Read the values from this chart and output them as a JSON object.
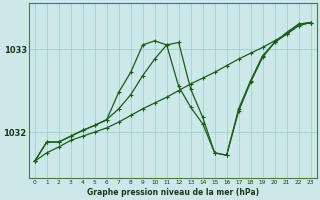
{
  "bg_color": "#cce8e8",
  "grid_color": "#99cccc",
  "line_color": "#1a5c1a",
  "title": "Graphe pression niveau de la mer (hPa)",
  "hours": [
    0,
    1,
    2,
    3,
    4,
    5,
    6,
    7,
    8,
    9,
    10,
    11,
    12,
    13,
    14,
    15,
    16,
    17,
    18,
    19,
    20,
    21,
    22,
    23
  ],
  "ylim": [
    1031.45,
    1033.55
  ],
  "yticks": [
    1032,
    1033
  ],
  "series": [
    [
      1031.65,
      1031.75,
      1031.82,
      1031.9,
      1031.95,
      1032.0,
      1032.05,
      1032.12,
      1032.2,
      1032.28,
      1032.35,
      1032.42,
      1032.5,
      1032.58,
      1032.65,
      1032.72,
      1032.8,
      1032.88,
      1032.95,
      1033.02,
      1033.1,
      1033.18,
      1033.28,
      1033.32
    ],
    [
      1031.65,
      1031.88,
      1031.88,
      1031.95,
      1032.02,
      1032.08,
      1032.15,
      1032.48,
      1032.72,
      1033.05,
      1033.1,
      1033.05,
      1032.55,
      1032.3,
      1032.1,
      1031.75,
      1031.72,
      1032.25,
      1032.6,
      1032.9,
      1033.08,
      1033.2,
      1033.3,
      1033.32
    ],
    [
      1031.65,
      1031.88,
      1031.88,
      1031.95,
      1032.02,
      1032.08,
      1032.15,
      1032.28,
      1032.45,
      1032.68,
      1032.88,
      1033.05,
      1033.08,
      1032.52,
      1032.18,
      1031.75,
      1031.72,
      1032.28,
      1032.62,
      1032.92,
      1033.08,
      1033.18,
      1033.3,
      1033.32
    ]
  ]
}
